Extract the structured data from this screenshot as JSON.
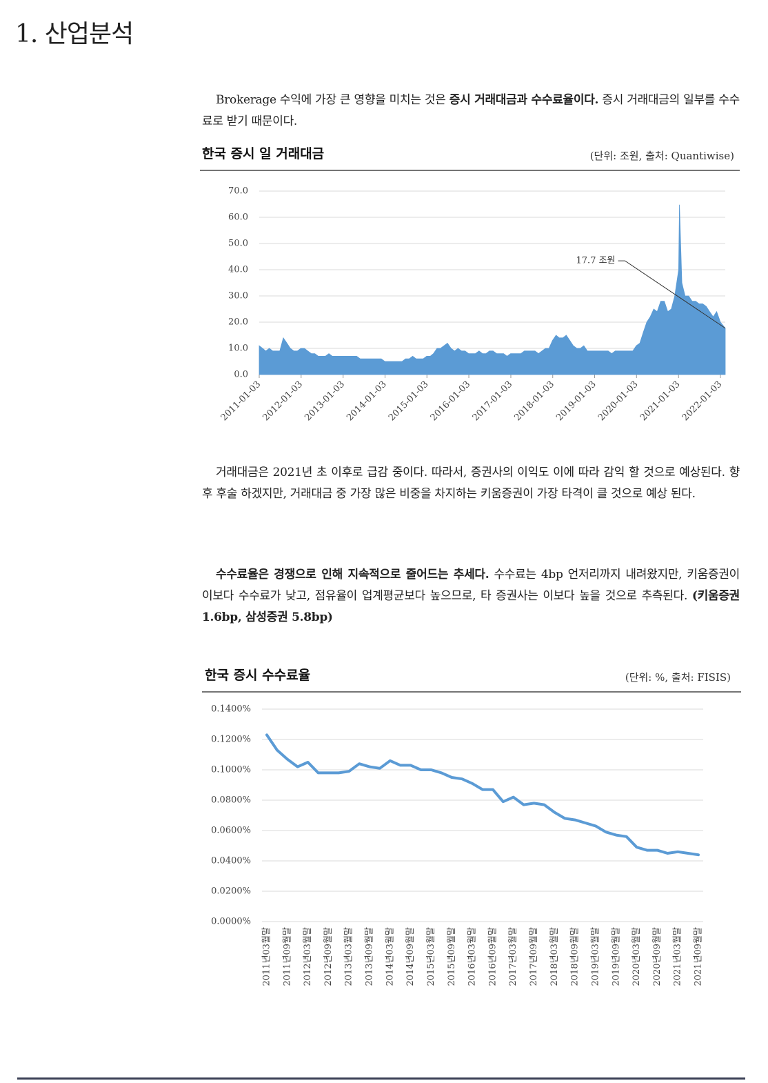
{
  "header": {
    "title": "1. 산업분석"
  },
  "paragraphs": [
    {
      "runs": [
        {
          "text": "Brokerage 수익에 가장 큰 영향을 미치는 것은 ",
          "bold": false
        },
        {
          "text": "증시 거래대금과 수수료율이다.",
          "bold": true
        },
        {
          "text": " 증시 거래대금의 일부를 수수료로 받기 때문이다.",
          "bold": false
        }
      ]
    },
    {
      "runs": [
        {
          "text": "거래대금은 2021년 초 이후로 급감 중이다. 따라서, 증권사의 이익도 이에 따라 감익 할 것으로 예상된다. 향후 후술 하겠지만, 거래대금 중 가장 많은 비중을 차지하는 키움증권이 가장 타격이 클 것으로 예상 된다.",
          "bold": false
        }
      ]
    },
    {
      "runs": [
        {
          "text": "수수료율은 경쟁으로 인해 지속적으로 줄어드는 추세다.",
          "bold": true
        },
        {
          "text": " 수수료는 4bp 언저리까지 내려왔지만, 키움증권이 이보다 수수료가 낮고, 점유율이 업계평균보다 높으므로, 타 증권사는 이보다 높을 것으로 추측된다. ",
          "bold": false
        },
        {
          "text": "(키움증권 1.6bp, 삼성증권 5.8bp)",
          "bold": true
        }
      ]
    }
  ],
  "chart_data": [
    {
      "type": "area",
      "title": "한국 증시 일 거래대금",
      "subtitle": "(단위: 조원, 출처: Quantiwise)",
      "color": "#5b9bd5",
      "grid": true,
      "x": [
        "2011-01-03",
        "2011-02-01",
        "2011-03-01",
        "2011-04-01",
        "2011-05-01",
        "2011-06-01",
        "2011-07-01",
        "2011-08-01",
        "2011-09-01",
        "2011-10-01",
        "2011-11-01",
        "2011-12-01",
        "2012-01-01",
        "2012-02-01",
        "2012-03-01",
        "2012-04-01",
        "2012-05-01",
        "2012-06-01",
        "2012-07-01",
        "2012-08-01",
        "2012-09-01",
        "2012-10-01",
        "2012-11-01",
        "2012-12-01",
        "2013-01-01",
        "2013-02-01",
        "2013-03-01",
        "2013-04-01",
        "2013-05-01",
        "2013-06-01",
        "2013-07-01",
        "2013-08-01",
        "2013-09-01",
        "2013-10-01",
        "2013-11-01",
        "2013-12-01",
        "2014-01-01",
        "2014-02-01",
        "2014-03-01",
        "2014-04-01",
        "2014-05-01",
        "2014-06-01",
        "2014-07-01",
        "2014-08-01",
        "2014-09-01",
        "2014-10-01",
        "2014-11-01",
        "2014-12-01",
        "2015-01-01",
        "2015-02-01",
        "2015-03-01",
        "2015-04-01",
        "2015-05-01",
        "2015-06-01",
        "2015-07-01",
        "2015-08-01",
        "2015-09-01",
        "2015-10-01",
        "2015-11-01",
        "2015-12-01",
        "2016-01-01",
        "2016-02-01",
        "2016-03-01",
        "2016-04-01",
        "2016-05-01",
        "2016-06-01",
        "2016-07-01",
        "2016-08-01",
        "2016-09-01",
        "2016-10-01",
        "2016-11-01",
        "2016-12-01",
        "2017-01-01",
        "2017-02-01",
        "2017-03-01",
        "2017-04-01",
        "2017-05-01",
        "2017-06-01",
        "2017-07-01",
        "2017-08-01",
        "2017-09-01",
        "2017-10-01",
        "2017-11-01",
        "2017-12-01",
        "2018-01-01",
        "2018-02-01",
        "2018-03-01",
        "2018-04-01",
        "2018-05-01",
        "2018-06-01",
        "2018-07-01",
        "2018-08-01",
        "2018-09-01",
        "2018-10-01",
        "2018-11-01",
        "2018-12-01",
        "2019-01-01",
        "2019-02-01",
        "2019-03-01",
        "2019-04-01",
        "2019-05-01",
        "2019-06-01",
        "2019-07-01",
        "2019-08-01",
        "2019-09-01",
        "2019-10-01",
        "2019-11-01",
        "2019-12-01",
        "2020-01-01",
        "2020-02-01",
        "2020-03-01",
        "2020-04-01",
        "2020-05-01",
        "2020-06-01",
        "2020-07-01",
        "2020-08-01",
        "2020-09-01",
        "2020-10-01",
        "2020-11-01",
        "2020-12-01",
        "2021-01-04",
        "2021-01-11",
        "2021-02-01",
        "2021-03-01",
        "2021-04-01",
        "2021-05-01",
        "2021-06-01",
        "2021-07-01",
        "2021-08-01",
        "2021-09-01",
        "2021-10-01",
        "2021-11-01",
        "2021-12-01",
        "2022-01-03",
        "2022-02-14"
      ],
      "values": [
        11,
        10,
        9,
        10,
        9,
        9,
        9,
        14,
        12,
        10,
        9,
        9,
        10,
        10,
        9,
        8,
        8,
        7,
        7,
        7,
        8,
        7,
        7,
        7,
        7,
        7,
        7,
        7,
        7,
        6,
        6,
        6,
        6,
        6,
        6,
        6,
        5,
        5,
        5,
        5,
        5,
        5,
        6,
        6,
        7,
        6,
        6,
        6,
        7,
        7,
        8,
        10,
        10,
        11,
        12,
        10,
        9,
        10,
        9,
        9,
        8,
        8,
        8,
        9,
        8,
        8,
        9,
        9,
        8,
        8,
        8,
        7,
        8,
        8,
        8,
        8,
        9,
        9,
        9,
        9,
        8,
        9,
        10,
        10,
        13,
        15,
        14,
        14,
        15,
        13,
        11,
        10,
        10,
        11,
        9,
        9,
        9,
        9,
        9,
        9,
        9,
        8,
        9,
        9,
        9,
        9,
        9,
        9,
        11,
        12,
        16,
        20,
        22,
        25,
        24,
        28,
        28,
        24,
        25,
        30,
        40,
        64.8,
        35,
        30,
        30,
        28,
        28,
        27,
        27,
        26,
        24,
        22,
        24,
        20,
        17.7
      ],
      "xlim": [
        "2011-01-03",
        "2022-02-14"
      ],
      "xticks": [
        "2011-01-03",
        "2012-01-03",
        "2013-01-03",
        "2014-01-03",
        "2015-01-03",
        "2016-01-03",
        "2017-01-03",
        "2018-01-03",
        "2019-01-03",
        "2020-01-03",
        "2021-01-03",
        "2022-01-03"
      ],
      "ylim": [
        0,
        70
      ],
      "yticks": [
        {
          "value": 0,
          "label": "0.0"
        },
        {
          "value": 10,
          "label": "10.0"
        },
        {
          "value": 20,
          "label": "20.0"
        },
        {
          "value": 30,
          "label": "30.0"
        },
        {
          "value": 40,
          "label": "40.0"
        },
        {
          "value": 50,
          "label": "50.0"
        },
        {
          "value": 60,
          "label": "60.0"
        },
        {
          "value": 70,
          "label": "70.0"
        }
      ],
      "annotations": [
        {
          "text": "17.7 조원"
        }
      ]
    },
    {
      "type": "line",
      "title": "한국 증시 수수료율",
      "subtitle": "(단위: %, 출처: FISIS)",
      "color": "#5b9bd5",
      "grid": true,
      "categories": [
        "2011년03월말",
        null,
        "2011년09월말",
        null,
        "2012년03월말",
        null,
        "2012년09월말",
        null,
        "2013년03월말",
        null,
        "2013년09월말",
        null,
        "2014년03월말",
        null,
        "2014년09월말",
        null,
        "2015년03월말",
        null,
        "2015년09월말",
        null,
        "2016년03월말",
        null,
        "2016년09월말",
        null,
        "2017년03월말",
        null,
        "2017년09월말",
        null,
        "2018년03월말",
        null,
        "2018년09월말",
        null,
        "2019년03월말",
        null,
        "2019년09월말",
        null,
        "2020년03월말",
        null,
        "2020년09월말",
        null,
        "2021년03월말",
        null,
        "2021년09월말"
      ],
      "values": [
        0.123,
        0.113,
        0.107,
        0.102,
        0.105,
        0.098,
        0.098,
        0.098,
        0.099,
        0.104,
        0.102,
        0.101,
        0.106,
        0.103,
        0.103,
        0.1,
        0.1,
        0.098,
        0.095,
        0.094,
        0.091,
        0.087,
        0.087,
        0.079,
        0.082,
        0.077,
        0.078,
        0.077,
        0.072,
        0.068,
        0.067,
        0.065,
        0.063,
        0.059,
        0.057,
        0.056,
        0.049,
        0.047,
        0.047,
        0.045,
        0.046,
        0.045,
        0.044
      ],
      "ylim": [
        0,
        0.14
      ],
      "yticks": [
        {
          "value": 0,
          "label": "0.0000%"
        },
        {
          "value": 0.02,
          "label": "0.0200%"
        },
        {
          "value": 0.04,
          "label": "0.0400%"
        },
        {
          "value": 0.06,
          "label": "0.0600%"
        },
        {
          "value": 0.08,
          "label": "0.0800%"
        },
        {
          "value": 0.1,
          "label": "0.1000%"
        },
        {
          "value": 0.12,
          "label": "0.1200%"
        },
        {
          "value": 0.14,
          "label": "0.1400%"
        }
      ]
    }
  ]
}
